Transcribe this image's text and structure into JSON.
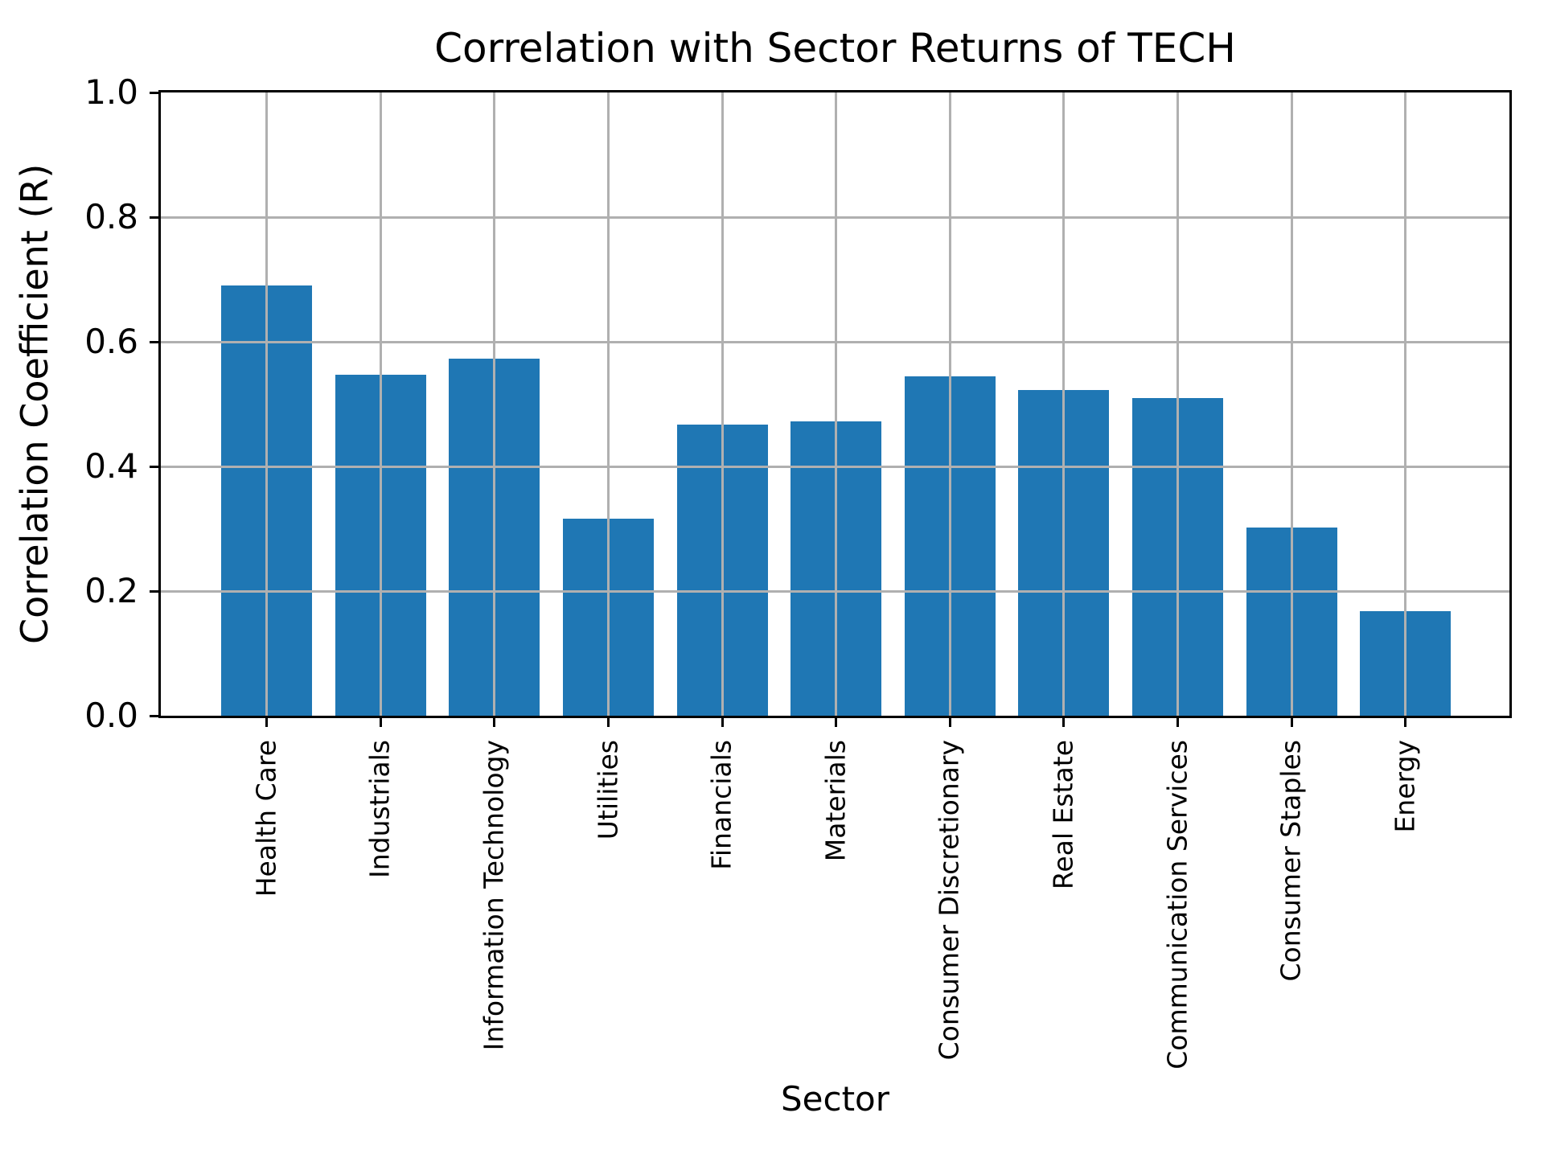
{
  "figure": {
    "background": "#ffffff"
  },
  "chart_data": {
    "type": "bar",
    "title": "Correlation with Sector Returns of TECH",
    "xlabel": "Sector",
    "ylabel": "Correlation Coefficient (R)",
    "categories": [
      "Health Care",
      "Industrials",
      "Information Technology",
      "Utilities",
      "Financials",
      "Materials",
      "Consumer Discretionary",
      "Real Estate",
      "Communication Services",
      "Consumer Staples",
      "Energy"
    ],
    "values": [
      0.69,
      0.547,
      0.573,
      0.316,
      0.467,
      0.472,
      0.544,
      0.522,
      0.51,
      0.302,
      0.168
    ],
    "ylim": [
      0,
      1
    ],
    "yticks": [
      "0.0",
      "0.2",
      "0.4",
      "0.6",
      "0.8",
      "1.0"
    ],
    "xtick_rotation": 90,
    "grid": true,
    "grid_over_bars": true,
    "legend": "none",
    "bar_color": "#1f77b4",
    "grid_color": "#b0b0b0",
    "spine_color": "#000000",
    "text_color": "#000000"
  }
}
